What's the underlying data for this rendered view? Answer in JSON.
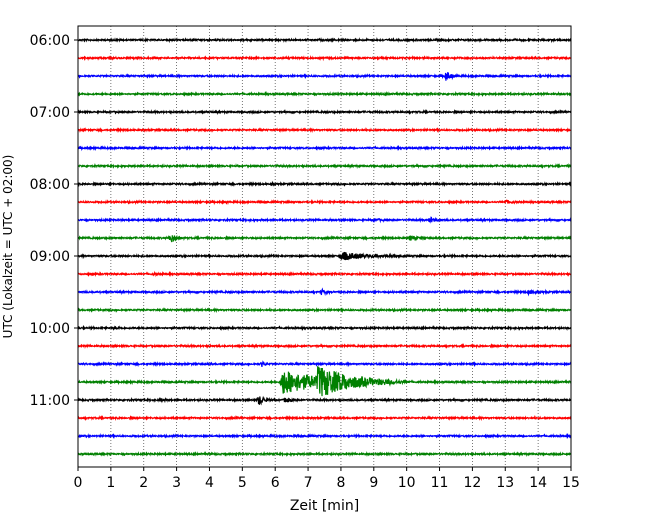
{
  "chart_data": {
    "type": "line",
    "title": "",
    "xlabel": "Zeit  [min]",
    "ylabel": "UTC (Lokalzeit = UTC + 02:00)",
    "xlim": [
      0,
      15
    ],
    "x_ticks": [
      0,
      1,
      2,
      3,
      4,
      5,
      6,
      7,
      8,
      9,
      10,
      11,
      12,
      13,
      14,
      15
    ],
    "x_tick_labels": [
      "0",
      "1",
      "2",
      "3",
      "4",
      "5",
      "6",
      "7",
      "8",
      "9",
      "10",
      "11",
      "12",
      "13",
      "14",
      "15"
    ],
    "y_tick_labels": [
      "06:00",
      "07:00",
      "08:00",
      "09:00",
      "10:00",
      "11:00"
    ],
    "grid": "vertical-dotted",
    "trace_minutes": 15,
    "trace_colors": [
      "#000000",
      "#ff0000",
      "#0000ff",
      "#008000"
    ],
    "traces": [
      {
        "start": "06:00",
        "events": []
      },
      {
        "start": "06:15",
        "events": []
      },
      {
        "start": "06:30",
        "events": [
          {
            "t": 11.2,
            "amp": 0.55,
            "dur": 0.4
          }
        ]
      },
      {
        "start": "06:45",
        "events": []
      },
      {
        "start": "07:00",
        "events": []
      },
      {
        "start": "07:15",
        "events": []
      },
      {
        "start": "07:30",
        "events": []
      },
      {
        "start": "07:45",
        "events": []
      },
      {
        "start": "08:00",
        "events": [
          {
            "t": 5.9,
            "amp": 0.12,
            "dur": 0.2
          }
        ]
      },
      {
        "start": "08:15",
        "events": [
          {
            "t": 13.0,
            "amp": 0.18,
            "dur": 0.5
          }
        ]
      },
      {
        "start": "08:30",
        "events": [
          {
            "t": 9.0,
            "amp": 0.15,
            "dur": 0.4
          },
          {
            "t": 10.7,
            "amp": 0.3,
            "dur": 0.4
          }
        ]
      },
      {
        "start": "08:45",
        "events": [
          {
            "t": 2.8,
            "amp": 0.5,
            "dur": 0.5
          },
          {
            "t": 10.1,
            "amp": 0.25,
            "dur": 0.5
          }
        ]
      },
      {
        "start": "09:00",
        "events": [
          {
            "t": 8.0,
            "amp": 0.45,
            "dur": 2.0
          }
        ]
      },
      {
        "start": "09:15",
        "events": [
          {
            "t": 2.3,
            "amp": 0.1,
            "dur": 0.4
          }
        ]
      },
      {
        "start": "09:30",
        "events": [
          {
            "t": 7.4,
            "amp": 0.3,
            "dur": 0.4
          },
          {
            "t": 13.7,
            "amp": 0.2,
            "dur": 0.7
          }
        ]
      },
      {
        "start": "09:45",
        "events": []
      },
      {
        "start": "10:00",
        "events": [
          {
            "t": 1.1,
            "amp": 0.15,
            "dur": 0.3
          }
        ]
      },
      {
        "start": "10:15",
        "events": []
      },
      {
        "start": "10:30",
        "events": [
          {
            "t": 5.6,
            "amp": 0.3,
            "dur": 0.2
          }
        ]
      },
      {
        "start": "10:45",
        "events": [
          {
            "t": 6.2,
            "amp": 1.4,
            "dur": 3.5
          },
          {
            "t": 7.3,
            "amp": 1.3,
            "dur": 2.8
          }
        ]
      },
      {
        "start": "11:00",
        "events": [
          {
            "t": 2.5,
            "amp": 0.15,
            "dur": 0.3
          },
          {
            "t": 5.5,
            "amp": 0.55,
            "dur": 0.5
          },
          {
            "t": 6.3,
            "amp": 0.25,
            "dur": 0.4
          }
        ]
      },
      {
        "start": "11:15",
        "events": []
      },
      {
        "start": "11:30",
        "events": [
          {
            "t": 6.6,
            "amp": 0.1,
            "dur": 0.2
          }
        ]
      },
      {
        "start": "11:45",
        "events": []
      }
    ]
  }
}
